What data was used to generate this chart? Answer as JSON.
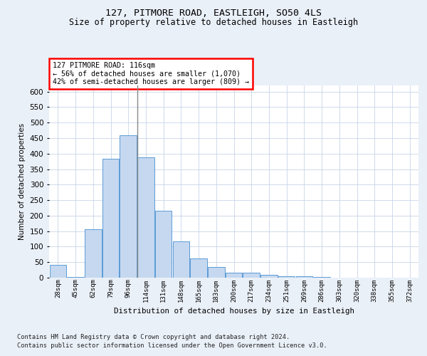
{
  "title1": "127, PITMORE ROAD, EASTLEIGH, SO50 4LS",
  "title2": "Size of property relative to detached houses in Eastleigh",
  "xlabel": "Distribution of detached houses by size in Eastleigh",
  "ylabel": "Number of detached properties",
  "footnote1": "Contains HM Land Registry data © Crown copyright and database right 2024.",
  "footnote2": "Contains public sector information licensed under the Open Government Licence v3.0.",
  "categories": [
    "28sqm",
    "45sqm",
    "62sqm",
    "79sqm",
    "96sqm",
    "114sqm",
    "131sqm",
    "148sqm",
    "165sqm",
    "183sqm",
    "200sqm",
    "217sqm",
    "234sqm",
    "251sqm",
    "269sqm",
    "286sqm",
    "303sqm",
    "320sqm",
    "338sqm",
    "355sqm",
    "372sqm"
  ],
  "values": [
    42,
    3,
    157,
    383,
    459,
    388,
    215,
    117,
    61,
    35,
    15,
    15,
    9,
    4,
    4,
    3,
    1,
    0,
    0,
    0,
    0
  ],
  "bar_color": "#c5d8f0",
  "bar_edge_color": "#5b9bd5",
  "annotation_text": "127 PITMORE ROAD: 116sqm\n← 56% of detached houses are smaller (1,070)\n42% of semi-detached houses are larger (809) →",
  "annotation_box_color": "white",
  "annotation_box_edge_color": "red",
  "vline_color": "#888888",
  "vline_x_index": 5,
  "ylim": [
    0,
    620
  ],
  "yticks": [
    0,
    50,
    100,
    150,
    200,
    250,
    300,
    350,
    400,
    450,
    500,
    550,
    600
  ],
  "bg_color": "#eaf0f8",
  "plot_bg_color": "white",
  "grid_color": "#c8d4e8"
}
